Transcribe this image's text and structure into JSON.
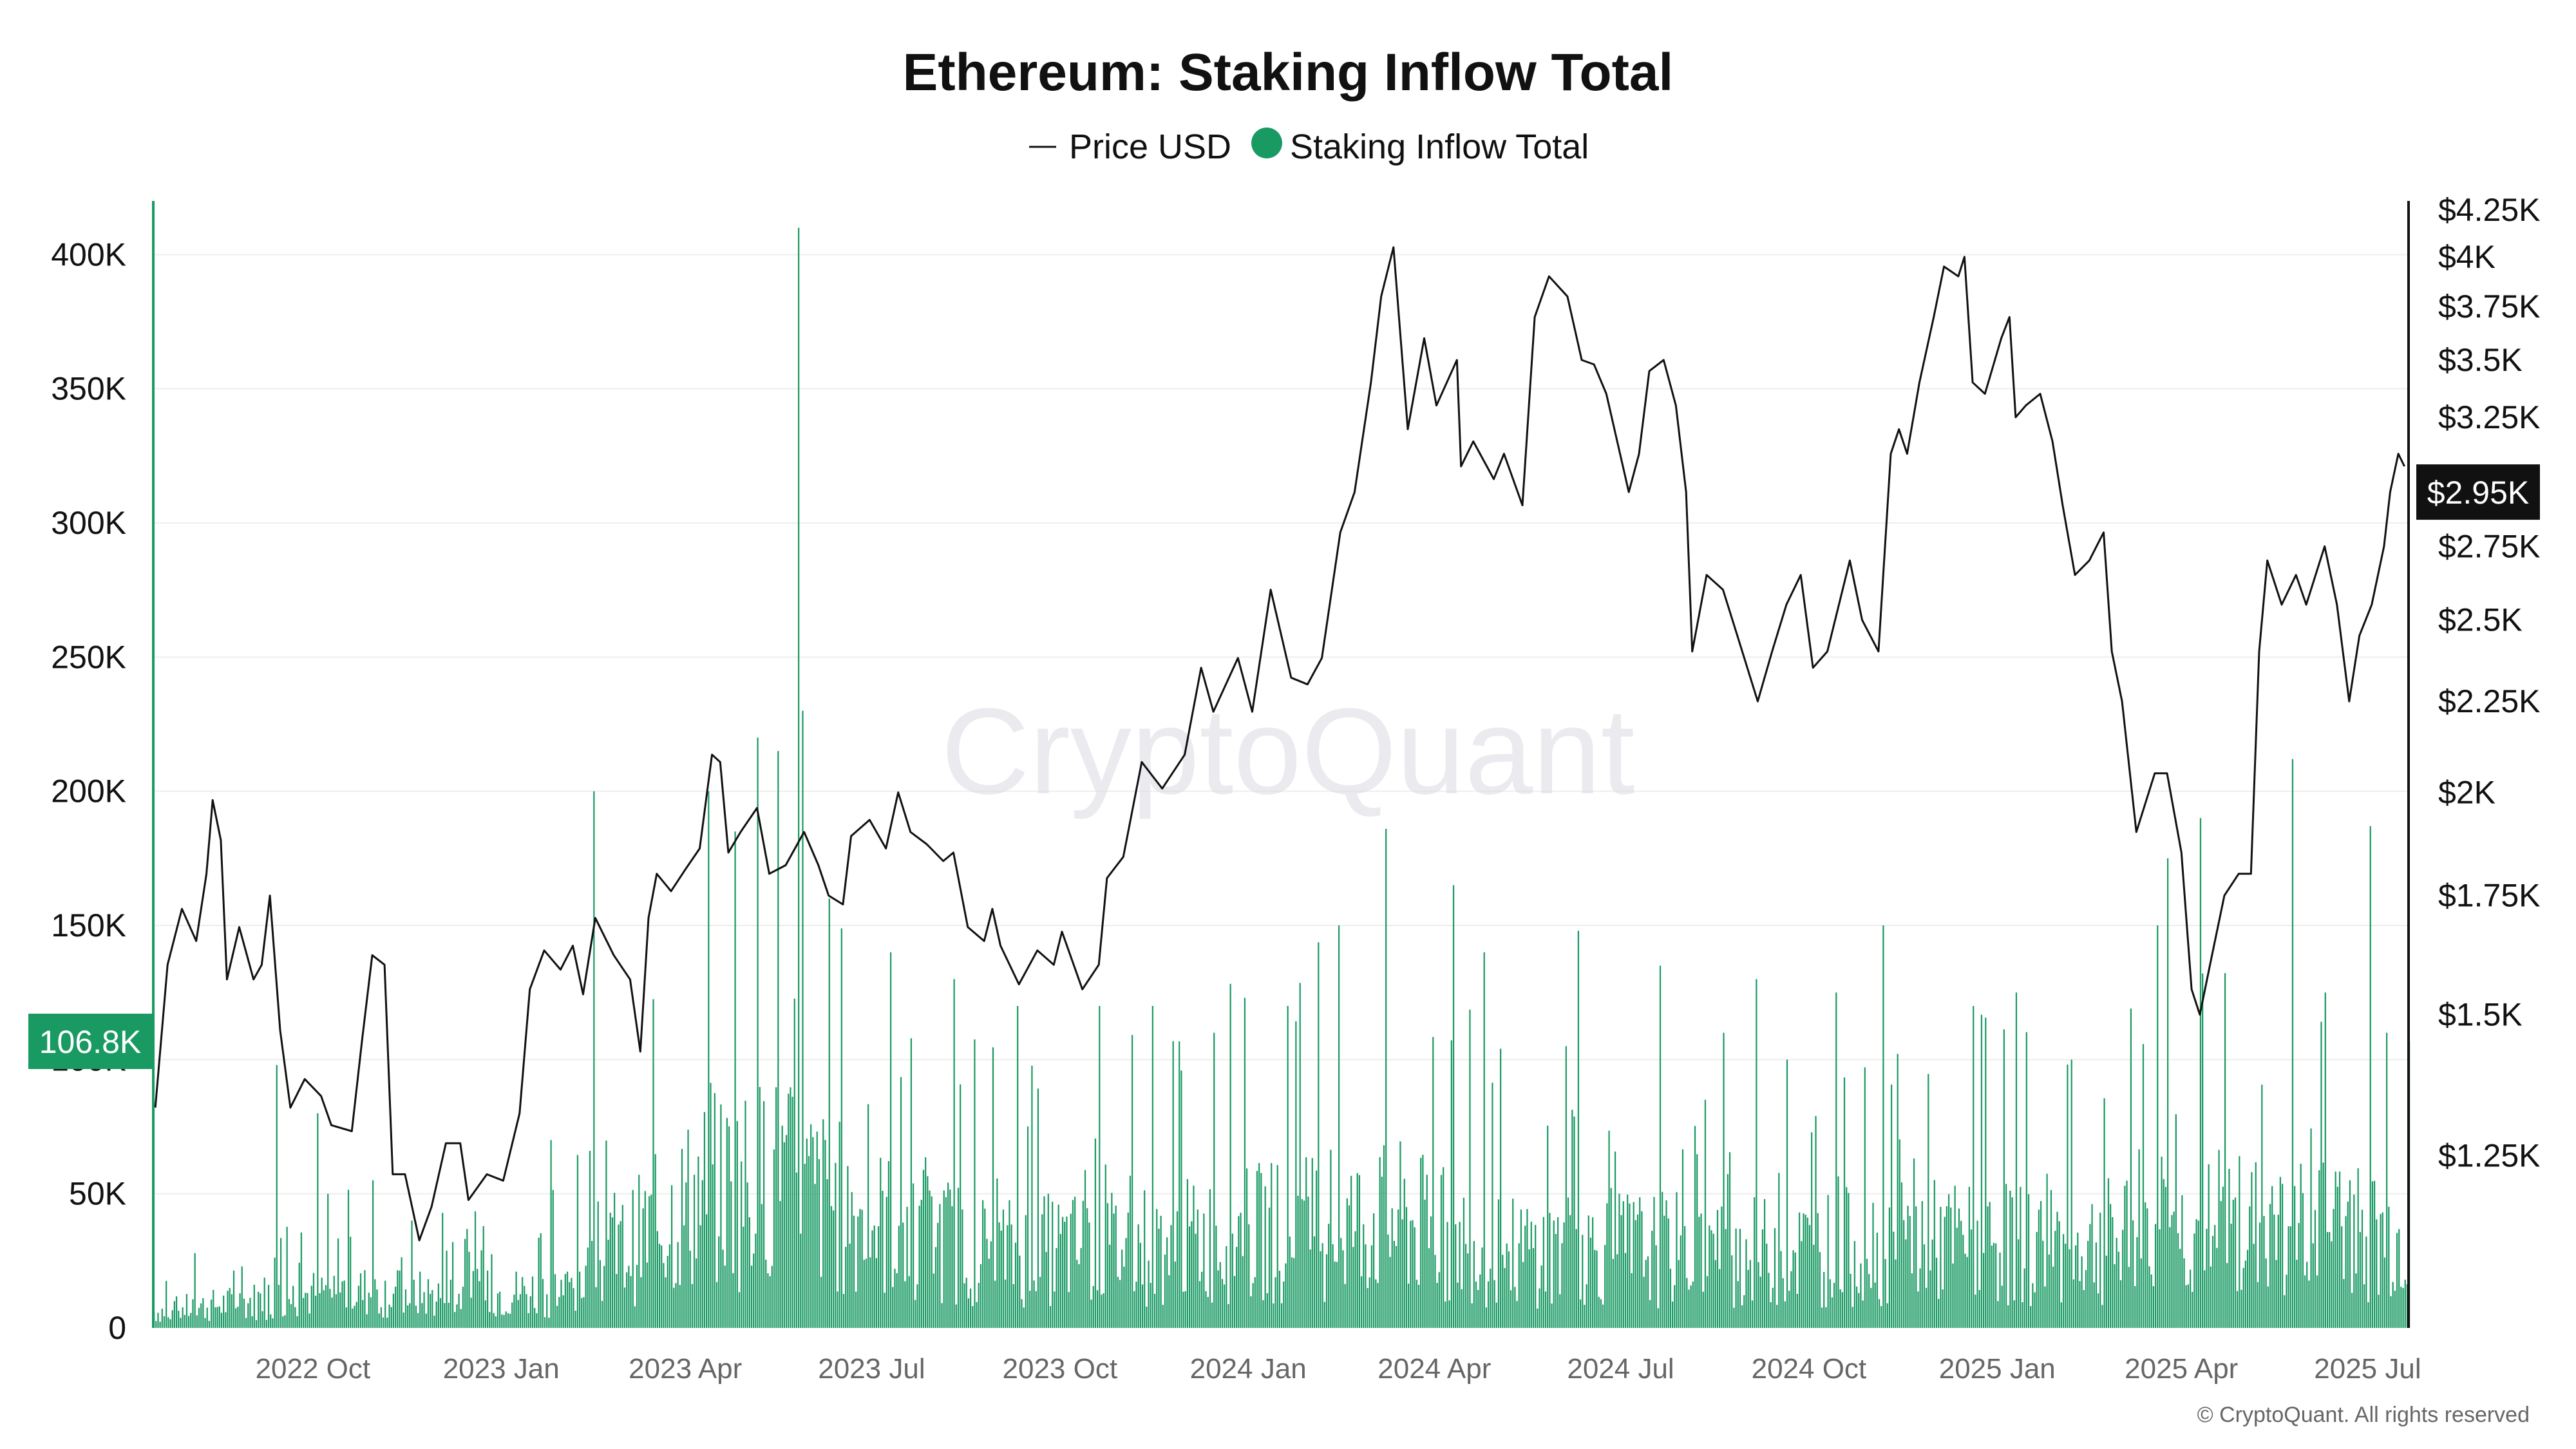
{
  "chart_data": {
    "type": "bar+line",
    "title": "Ethereum: Staking Inflow Total",
    "legend": [
      {
        "label": "Price USD",
        "marker": "line",
        "color": "#111111"
      },
      {
        "label": "Staking Inflow Total",
        "marker": "dot",
        "color": "#1a9a63"
      }
    ],
    "legend_position": "top-center",
    "watermark": "CryptoQuant",
    "copyright": "© CryptoQuant. All rights reserved",
    "x_range": [
      "2022-07-15",
      "2025-07-21"
    ],
    "x_ticks": [
      {
        "label": "2022 Oct",
        "date": "2022-10-01"
      },
      {
        "label": "2023 Jan",
        "date": "2023-01-01"
      },
      {
        "label": "2023 Apr",
        "date": "2023-04-01"
      },
      {
        "label": "2023 Jul",
        "date": "2023-07-01"
      },
      {
        "label": "2023 Oct",
        "date": "2023-10-01"
      },
      {
        "label": "2024 Jan",
        "date": "2024-01-01"
      },
      {
        "label": "2024 Apr",
        "date": "2024-04-01"
      },
      {
        "label": "2024 Jul",
        "date": "2024-07-01"
      },
      {
        "label": "2024 Oct",
        "date": "2024-10-01"
      },
      {
        "label": "2025 Jan",
        "date": "2025-01-01"
      },
      {
        "label": "2025 Apr",
        "date": "2025-04-01"
      },
      {
        "label": "2025 Jul",
        "date": "2025-07-01"
      }
    ],
    "left_axis": {
      "ylim": [
        0,
        420000
      ],
      "ticks": [
        {
          "value": 0,
          "label": "0"
        },
        {
          "value": 50000,
          "label": "50K"
        },
        {
          "value": 100000,
          "label": "100K"
        },
        {
          "value": 150000,
          "label": "150K"
        },
        {
          "value": 200000,
          "label": "200K"
        },
        {
          "value": 250000,
          "label": "250K"
        },
        {
          "value": 300000,
          "label": "300K"
        },
        {
          "value": 350000,
          "label": "350K"
        },
        {
          "value": 400000,
          "label": "400K"
        }
      ],
      "current_badge": {
        "value": 106800,
        "label": "106.8K",
        "color": "#1a9a63"
      }
    },
    "right_axis": {
      "scale": "log",
      "ylim": [
        1000,
        4300
      ],
      "ticks": [
        {
          "value": 1250,
          "label": "$1.25K"
        },
        {
          "value": 1500,
          "label": "$1.5K"
        },
        {
          "value": 1750,
          "label": "$1.75K"
        },
        {
          "value": 2000,
          "label": "$2K"
        },
        {
          "value": 2250,
          "label": "$2.25K"
        },
        {
          "value": 2500,
          "label": "$2.5K"
        },
        {
          "value": 2750,
          "label": "$2.75K"
        },
        {
          "value": 3250,
          "label": "$3.25K"
        },
        {
          "value": 3500,
          "label": "$3.5K"
        },
        {
          "value": 3750,
          "label": "$3.75K"
        },
        {
          "value": 4000,
          "label": "$4K"
        },
        {
          "value": 4250,
          "label": "$4.25K"
        }
      ],
      "current_badge": {
        "value": 2950,
        "label": "$2.95K",
        "color": "#111111"
      }
    },
    "series": [
      {
        "name": "Price USD",
        "axis": "right",
        "kind": "line",
        "color": "#111111",
        "points": [
          [
            "2022-07-16",
            1330
          ],
          [
            "2022-07-22",
            1600
          ],
          [
            "2022-07-29",
            1720
          ],
          [
            "2022-08-05",
            1650
          ],
          [
            "2022-08-10",
            1800
          ],
          [
            "2022-08-13",
            1980
          ],
          [
            "2022-08-17",
            1880
          ],
          [
            "2022-08-20",
            1570
          ],
          [
            "2022-08-26",
            1680
          ],
          [
            "2022-09-02",
            1570
          ],
          [
            "2022-09-06",
            1600
          ],
          [
            "2022-09-10",
            1750
          ],
          [
            "2022-09-15",
            1470
          ],
          [
            "2022-09-20",
            1330
          ],
          [
            "2022-09-27",
            1380
          ],
          [
            "2022-10-05",
            1350
          ],
          [
            "2022-10-10",
            1300
          ],
          [
            "2022-10-20",
            1290
          ],
          [
            "2022-10-25",
            1450
          ],
          [
            "2022-10-30",
            1620
          ],
          [
            "2022-11-05",
            1600
          ],
          [
            "2022-11-09",
            1220
          ],
          [
            "2022-11-15",
            1220
          ],
          [
            "2022-11-22",
            1120
          ],
          [
            "2022-11-28",
            1170
          ],
          [
            "2022-12-05",
            1270
          ],
          [
            "2022-12-12",
            1270
          ],
          [
            "2022-12-16",
            1180
          ],
          [
            "2022-12-25",
            1220
          ],
          [
            "2023-01-02",
            1210
          ],
          [
            "2023-01-10",
            1320
          ],
          [
            "2023-01-15",
            1550
          ],
          [
            "2023-01-22",
            1630
          ],
          [
            "2023-01-30",
            1590
          ],
          [
            "2023-02-05",
            1640
          ],
          [
            "2023-02-10",
            1540
          ],
          [
            "2023-02-16",
            1700
          ],
          [
            "2023-02-25",
            1620
          ],
          [
            "2023-03-05",
            1570
          ],
          [
            "2023-03-10",
            1430
          ],
          [
            "2023-03-14",
            1700
          ],
          [
            "2023-03-18",
            1800
          ],
          [
            "2023-03-25",
            1760
          ],
          [
            "2023-04-01",
            1810
          ],
          [
            "2023-04-08",
            1860
          ],
          [
            "2023-04-14",
            2100
          ],
          [
            "2023-04-18",
            2080
          ],
          [
            "2023-04-22",
            1850
          ],
          [
            "2023-04-28",
            1900
          ],
          [
            "2023-05-06",
            1960
          ],
          [
            "2023-05-12",
            1800
          ],
          [
            "2023-05-20",
            1820
          ],
          [
            "2023-05-29",
            1900
          ],
          [
            "2023-06-05",
            1820
          ],
          [
            "2023-06-10",
            1750
          ],
          [
            "2023-06-17",
            1730
          ],
          [
            "2023-06-21",
            1890
          ],
          [
            "2023-06-30",
            1930
          ],
          [
            "2023-07-08",
            1860
          ],
          [
            "2023-07-14",
            2000
          ],
          [
            "2023-07-20",
            1900
          ],
          [
            "2023-07-28",
            1870
          ],
          [
            "2023-08-05",
            1830
          ],
          [
            "2023-08-10",
            1850
          ],
          [
            "2023-08-17",
            1680
          ],
          [
            "2023-08-25",
            1650
          ],
          [
            "2023-08-29",
            1720
          ],
          [
            "2023-09-02",
            1640
          ],
          [
            "2023-09-11",
            1560
          ],
          [
            "2023-09-20",
            1630
          ],
          [
            "2023-09-28",
            1600
          ],
          [
            "2023-10-02",
            1670
          ],
          [
            "2023-10-12",
            1550
          ],
          [
            "2023-10-20",
            1600
          ],
          [
            "2023-10-24",
            1790
          ],
          [
            "2023-11-01",
            1840
          ],
          [
            "2023-11-10",
            2080
          ],
          [
            "2023-11-20",
            2010
          ],
          [
            "2023-12-01",
            2100
          ],
          [
            "2023-12-09",
            2350
          ],
          [
            "2023-12-15",
            2220
          ],
          [
            "2023-12-27",
            2380
          ],
          [
            "2024-01-03",
            2220
          ],
          [
            "2024-01-12",
            2600
          ],
          [
            "2024-01-22",
            2320
          ],
          [
            "2024-01-30",
            2300
          ],
          [
            "2024-02-06",
            2380
          ],
          [
            "2024-02-15",
            2800
          ],
          [
            "2024-02-22",
            2950
          ],
          [
            "2024-03-01",
            3400
          ],
          [
            "2024-03-06",
            3800
          ],
          [
            "2024-03-12",
            4050
          ],
          [
            "2024-03-19",
            3200
          ],
          [
            "2024-03-27",
            3600
          ],
          [
            "2024-04-02",
            3300
          ],
          [
            "2024-04-12",
            3500
          ],
          [
            "2024-04-14",
            3050
          ],
          [
            "2024-04-20",
            3150
          ],
          [
            "2024-04-30",
            3000
          ],
          [
            "2024-05-05",
            3100
          ],
          [
            "2024-05-14",
            2900
          ],
          [
            "2024-05-20",
            3700
          ],
          [
            "2024-05-27",
            3900
          ],
          [
            "2024-06-05",
            3800
          ],
          [
            "2024-06-12",
            3500
          ],
          [
            "2024-06-18",
            3480
          ],
          [
            "2024-06-24",
            3350
          ],
          [
            "2024-07-05",
            2950
          ],
          [
            "2024-07-10",
            3100
          ],
          [
            "2024-07-15",
            3450
          ],
          [
            "2024-07-22",
            3500
          ],
          [
            "2024-07-28",
            3300
          ],
          [
            "2024-08-02",
            2950
          ],
          [
            "2024-08-05",
            2400
          ],
          [
            "2024-08-12",
            2650
          ],
          [
            "2024-08-20",
            2600
          ],
          [
            "2024-08-27",
            2450
          ],
          [
            "2024-09-06",
            2250
          ],
          [
            "2024-09-13",
            2400
          ],
          [
            "2024-09-20",
            2550
          ],
          [
            "2024-09-27",
            2650
          ],
          [
            "2024-10-03",
            2350
          ],
          [
            "2024-10-10",
            2400
          ],
          [
            "2024-10-21",
            2700
          ],
          [
            "2024-10-27",
            2500
          ],
          [
            "2024-11-04",
            2400
          ],
          [
            "2024-11-10",
            3100
          ],
          [
            "2024-11-14",
            3200
          ],
          [
            "2024-11-18",
            3100
          ],
          [
            "2024-11-24",
            3400
          ],
          [
            "2024-12-01",
            3700
          ],
          [
            "2024-12-06",
            3950
          ],
          [
            "2024-12-13",
            3900
          ],
          [
            "2024-12-16",
            4000
          ],
          [
            "2024-12-20",
            3400
          ],
          [
            "2024-12-26",
            3350
          ],
          [
            "2025-01-03",
            3600
          ],
          [
            "2025-01-07",
            3700
          ],
          [
            "2025-01-10",
            3250
          ],
          [
            "2025-01-15",
            3300
          ],
          [
            "2025-01-22",
            3350
          ],
          [
            "2025-01-28",
            3150
          ],
          [
            "2025-02-02",
            2900
          ],
          [
            "2025-02-08",
            2650
          ],
          [
            "2025-02-15",
            2700
          ],
          [
            "2025-02-22",
            2800
          ],
          [
            "2025-02-26",
            2400
          ],
          [
            "2025-03-03",
            2250
          ],
          [
            "2025-03-10",
            1900
          ],
          [
            "2025-03-19",
            2050
          ],
          [
            "2025-03-25",
            2050
          ],
          [
            "2025-04-01",
            1850
          ],
          [
            "2025-04-06",
            1550
          ],
          [
            "2025-04-10",
            1500
          ],
          [
            "2025-04-15",
            1600
          ],
          [
            "2025-04-22",
            1750
          ],
          [
            "2025-04-29",
            1800
          ],
          [
            "2025-05-05",
            1800
          ],
          [
            "2025-05-09",
            2400
          ],
          [
            "2025-05-13",
            2700
          ],
          [
            "2025-05-20",
            2550
          ],
          [
            "2025-05-27",
            2650
          ],
          [
            "2025-06-01",
            2550
          ],
          [
            "2025-06-10",
            2750
          ],
          [
            "2025-06-16",
            2550
          ],
          [
            "2025-06-22",
            2250
          ],
          [
            "2025-06-27",
            2450
          ],
          [
            "2025-07-03",
            2550
          ],
          [
            "2025-07-09",
            2750
          ],
          [
            "2025-07-12",
            2950
          ],
          [
            "2025-07-16",
            3100
          ],
          [
            "2025-07-19",
            3050
          ]
        ]
      },
      {
        "name": "Staking Inflow Total",
        "axis": "left",
        "kind": "bar",
        "color": "#1a9a63",
        "baseline_levels": [
          [
            "2022-07-15",
            6000
          ],
          [
            "2022-09-01",
            10000
          ],
          [
            "2022-10-15",
            14000
          ],
          [
            "2022-12-01",
            12000
          ],
          [
            "2023-02-01",
            14000
          ],
          [
            "2023-04-10",
            50000
          ],
          [
            "2023-05-15",
            55000
          ],
          [
            "2023-06-30",
            40000
          ],
          [
            "2023-09-01",
            28000
          ],
          [
            "2023-12-01",
            32000
          ],
          [
            "2024-02-01",
            38000
          ],
          [
            "2024-03-15",
            40000
          ],
          [
            "2024-05-01",
            28000
          ],
          [
            "2024-07-01",
            30000
          ],
          [
            "2024-09-01",
            28000
          ],
          [
            "2024-12-01",
            32000
          ],
          [
            "2025-02-01",
            30000
          ],
          [
            "2025-04-01",
            35000
          ],
          [
            "2025-06-01",
            38000
          ],
          [
            "2025-07-21",
            32000
          ]
        ],
        "peaks": [
          [
            "2022-07-25",
            10000
          ],
          [
            "2022-09-13",
            98000
          ],
          [
            "2022-10-03",
            80000
          ],
          [
            "2022-10-30",
            55000
          ],
          [
            "2022-11-18",
            40000
          ],
          [
            "2023-01-25",
            70000
          ],
          [
            "2023-02-15",
            200000
          ],
          [
            "2023-04-12",
            200000
          ],
          [
            "2023-04-25",
            185000
          ],
          [
            "2023-05-06",
            220000
          ],
          [
            "2023-05-16",
            215000
          ],
          [
            "2023-05-26",
            410000
          ],
          [
            "2023-05-28",
            230000
          ],
          [
            "2023-06-10",
            160000
          ],
          [
            "2023-07-10",
            140000
          ],
          [
            "2023-08-10",
            130000
          ],
          [
            "2023-09-10",
            120000
          ],
          [
            "2023-10-20",
            120000
          ],
          [
            "2023-11-15",
            120000
          ],
          [
            "2023-12-15",
            110000
          ],
          [
            "2024-01-20",
            120000
          ],
          [
            "2024-02-14",
            150000
          ],
          [
            "2024-03-08",
            186000
          ],
          [
            "2024-04-10",
            165000
          ],
          [
            "2024-04-25",
            140000
          ],
          [
            "2024-06-10",
            148000
          ],
          [
            "2024-07-20",
            135000
          ],
          [
            "2024-08-20",
            110000
          ],
          [
            "2024-09-05",
            130000
          ],
          [
            "2024-09-20",
            100000
          ],
          [
            "2024-10-14",
            125000
          ],
          [
            "2024-11-06",
            150000
          ],
          [
            "2024-12-20",
            120000
          ],
          [
            "2025-01-10",
            125000
          ],
          [
            "2025-02-06",
            100000
          ],
          [
            "2025-03-20",
            150000
          ],
          [
            "2025-03-25",
            175000
          ],
          [
            "2025-04-10",
            190000
          ],
          [
            "2025-05-25",
            212000
          ],
          [
            "2025-06-10",
            125000
          ],
          [
            "2025-07-02",
            187000
          ],
          [
            "2025-07-10",
            110000
          ]
        ],
        "latest_value": 106800
      }
    ]
  }
}
